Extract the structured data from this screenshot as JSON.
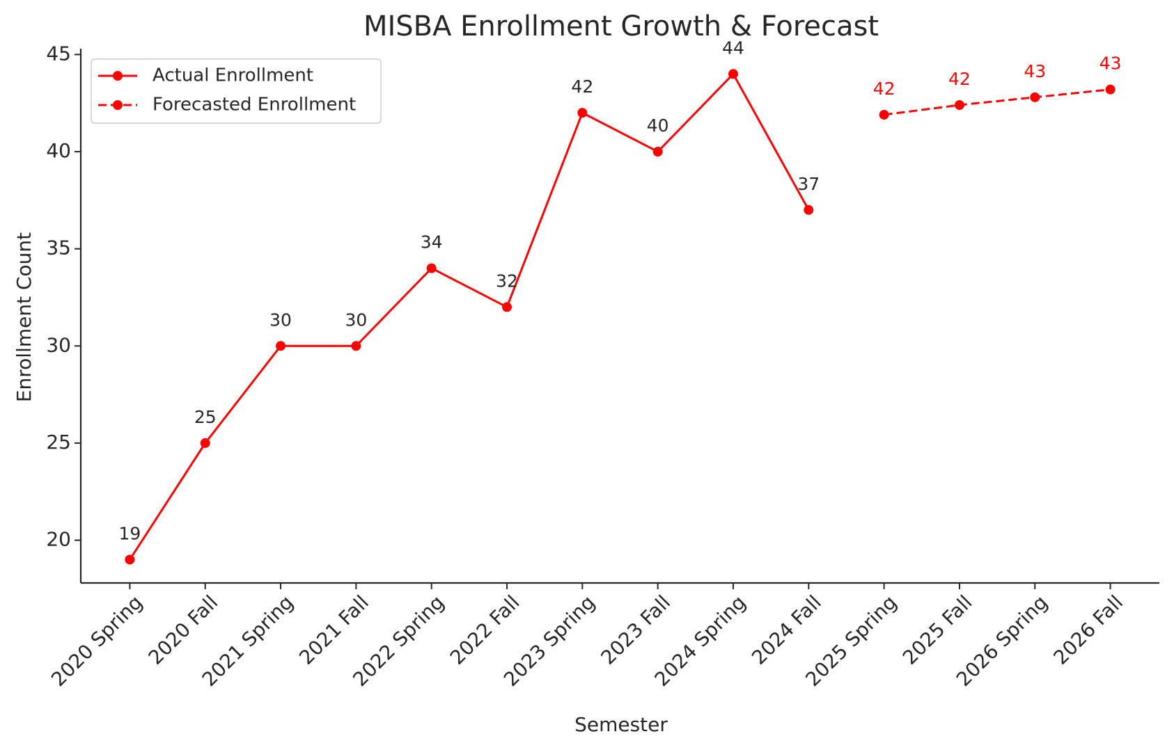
{
  "chart_data": {
    "type": "line",
    "title": "MISBA Enrollment Growth & Forecast",
    "x_label": "Semester",
    "y_label": "Enrollment Count",
    "categories": [
      "2020 Spring",
      "2020 Fall",
      "2021 Spring",
      "2021 Fall",
      "2022 Spring",
      "2022 Fall",
      "2023 Spring",
      "2023 Fall",
      "2024 Spring",
      "2024 Fall",
      "2025 Spring",
      "2025 Fall",
      "2026 Spring",
      "2026 Fall"
    ],
    "series": [
      {
        "name": "Actual Enrollment",
        "color": "#ff0000",
        "dashed": false,
        "values": [
          19,
          25,
          30,
          30,
          34,
          32,
          42,
          40,
          44,
          37,
          null,
          null,
          null,
          null
        ]
      },
      {
        "name": "Forecasted Enrollment",
        "color": "#ff0000",
        "dashed": true,
        "values": [
          null,
          null,
          null,
          null,
          null,
          null,
          null,
          null,
          null,
          null,
          41.9,
          42.4,
          42.8,
          43.2
        ],
        "value_labels": [
          null,
          null,
          null,
          null,
          null,
          null,
          null,
          null,
          null,
          null,
          "42",
          "42",
          "43",
          "43"
        ]
      }
    ],
    "ylim": [
      17.8,
      45.3
    ],
    "yticks": [
      20,
      25,
      30,
      35,
      40,
      45
    ],
    "grid": false,
    "legend": "upper-left"
  }
}
